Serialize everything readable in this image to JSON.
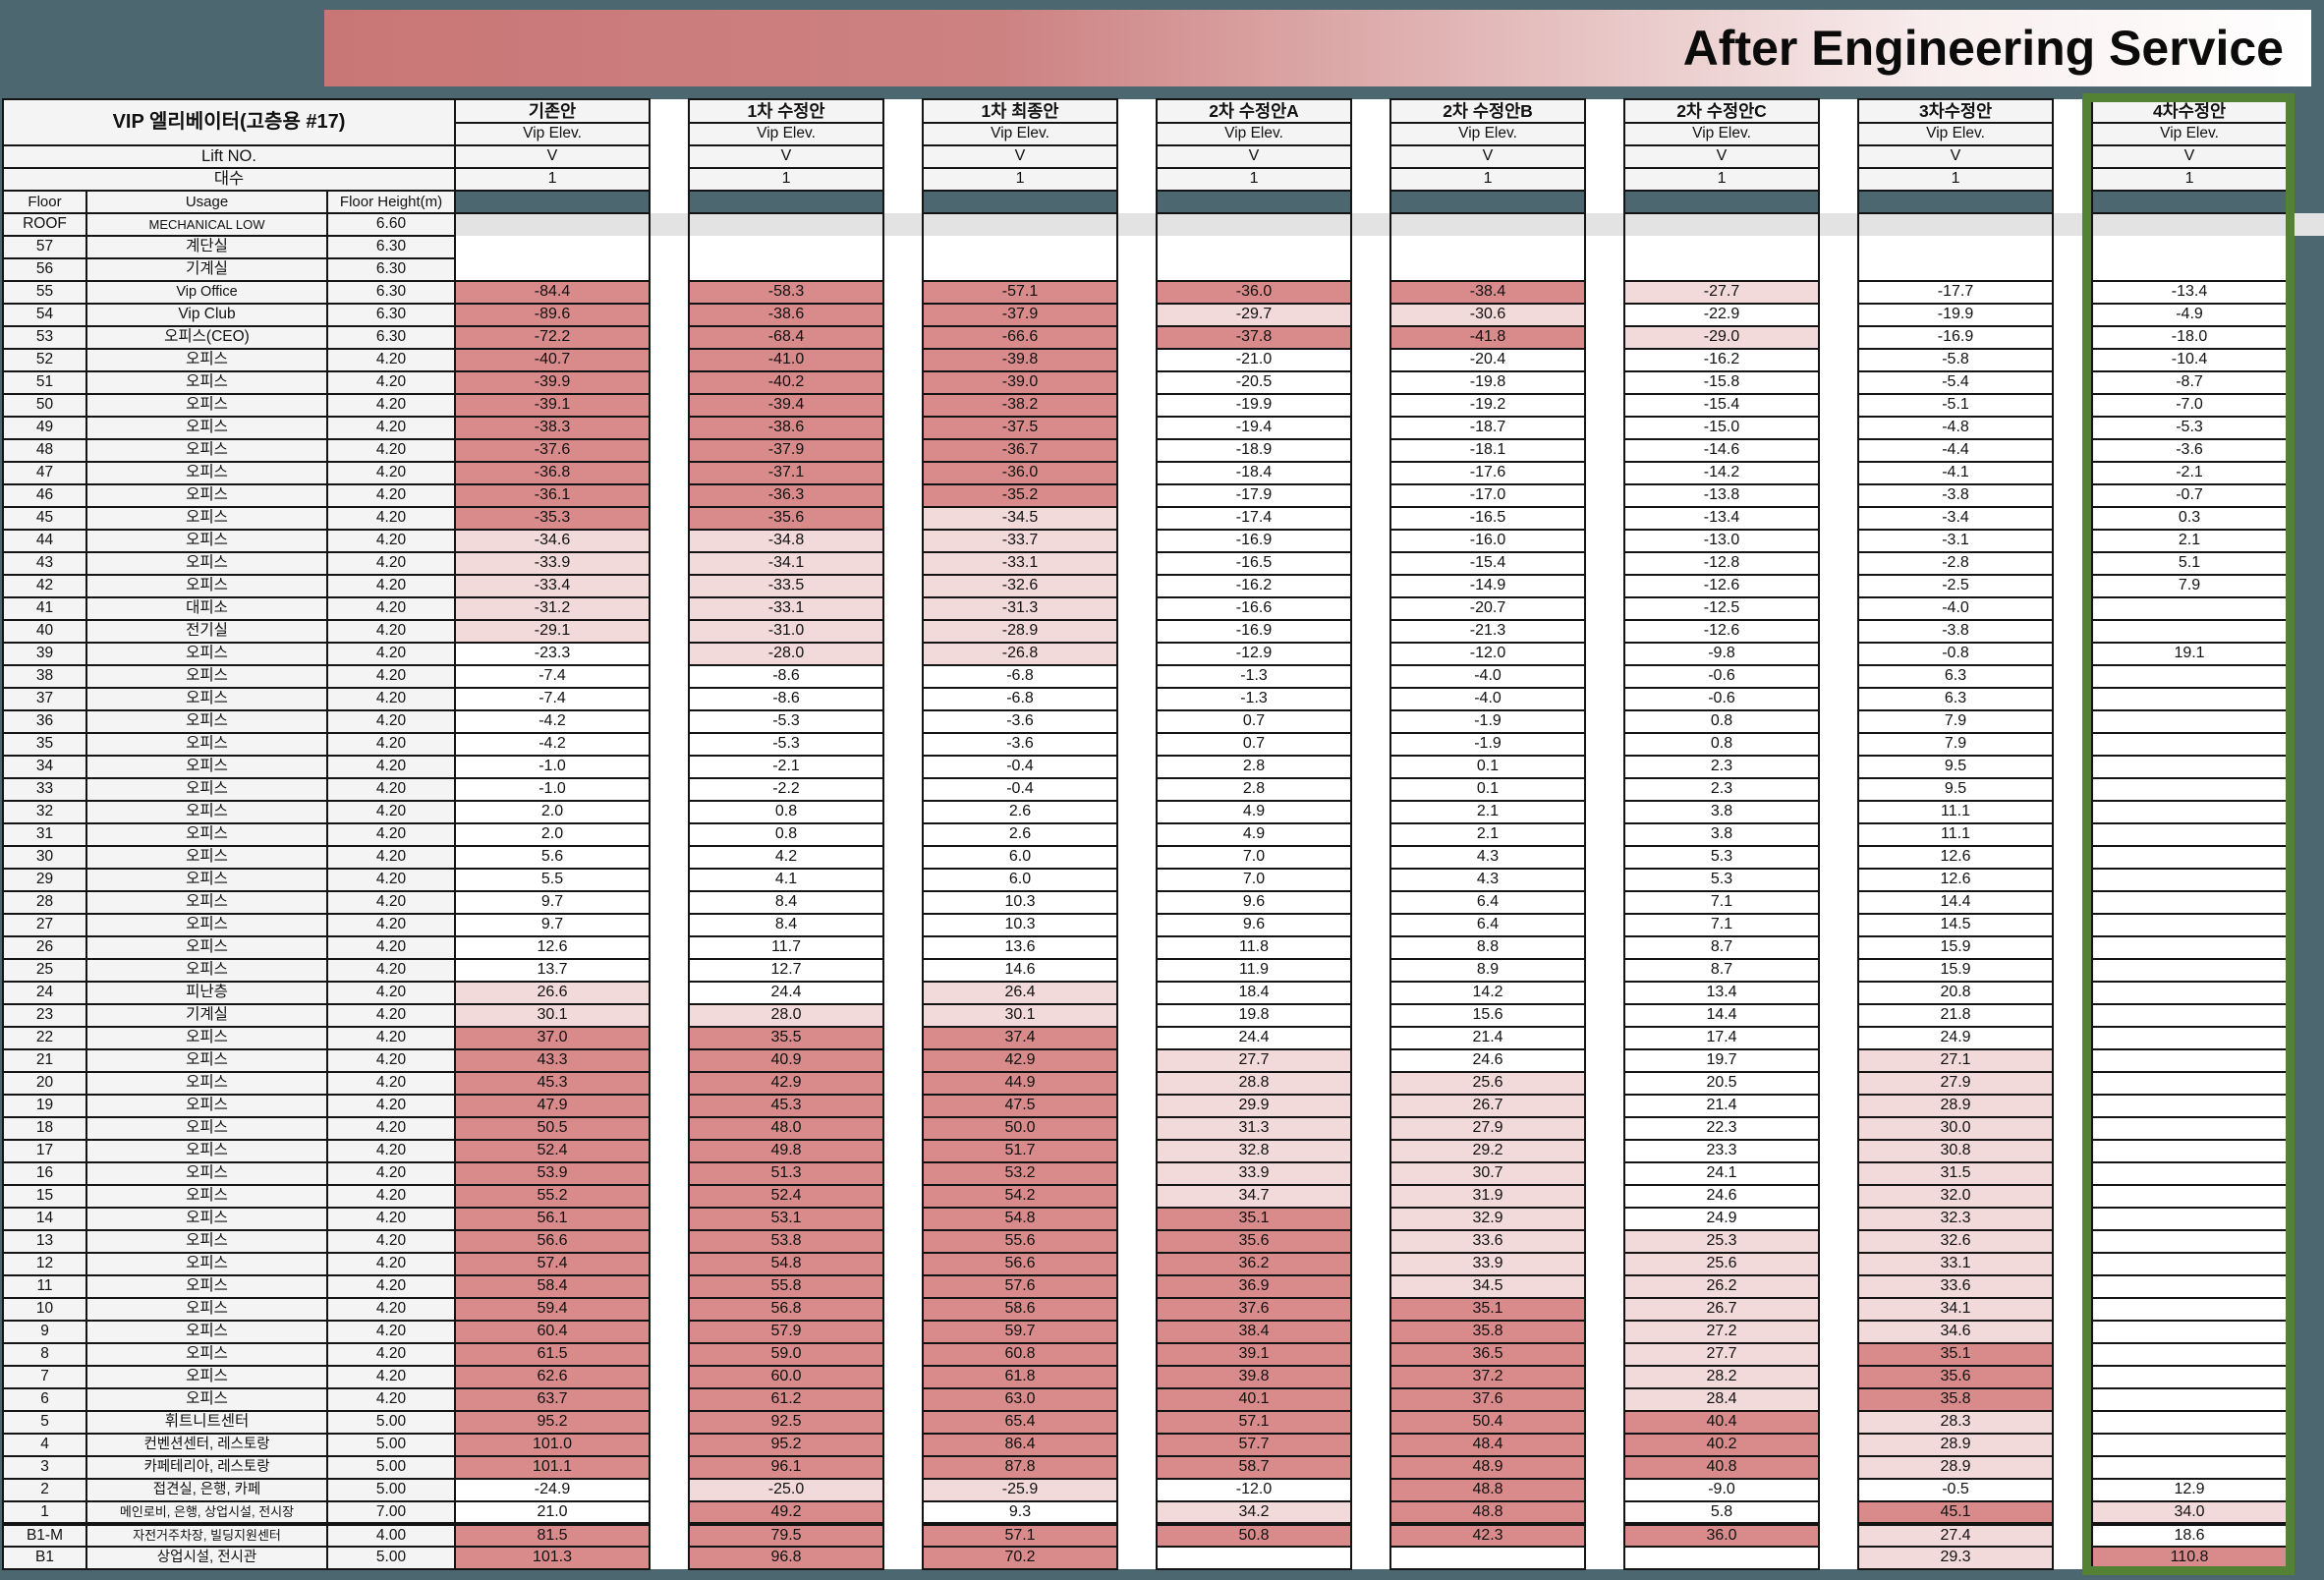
{
  "banner": {
    "title": "After Engineering Service",
    "gradient_from": "#c97676",
    "gradient_to": "#ffffff"
  },
  "table": {
    "corner_title": "VIP 엘리베이터(고층용 #17)",
    "lift_no_label": "Lift NO.",
    "unit_count_label": "대수",
    "floor_label": "Floor",
    "usage_label": "Usage",
    "floor_height_label": "Floor Height(m)",
    "format_colors": {
      "strong": "#d98b8b",
      "light": "#f2d9da",
      "highlight_border": "#548235"
    },
    "proposals": [
      {
        "name": "기존안",
        "sub": "Vip Elev.",
        "lift_no": "V",
        "units": "1",
        "highlight": false
      },
      {
        "name": "1차 수정안",
        "sub": "Vip Elev.",
        "lift_no": "V",
        "units": "1",
        "highlight": false
      },
      {
        "name": "1차 최종안",
        "sub": "Vip Elev.",
        "lift_no": "V",
        "units": "1",
        "highlight": false
      },
      {
        "name": "2차 수정안A",
        "sub": "Vip Elev.",
        "lift_no": "V",
        "units": "1",
        "highlight": false
      },
      {
        "name": "2차 수정안B",
        "sub": "Vip Elev.",
        "lift_no": "V",
        "units": "1",
        "highlight": false
      },
      {
        "name": "2차 수정안C",
        "sub": "Vip Elev.",
        "lift_no": "V",
        "units": "1",
        "highlight": false
      },
      {
        "name": "3차수정안",
        "sub": "Vip Elev.",
        "lift_no": "V",
        "units": "1",
        "highlight": false
      },
      {
        "name": "4차수정안",
        "sub": "Vip Elev.",
        "lift_no": "V",
        "units": "1",
        "highlight": true
      }
    ],
    "rows": [
      {
        "floor": "ROOF",
        "usage": "MECHANICAL LOW",
        "height": "6.60",
        "band": "gray",
        "nob": true,
        "values": [
          null,
          null,
          null,
          null,
          null,
          null,
          null,
          null
        ]
      },
      {
        "floor": "57",
        "usage": "계단실",
        "height": "6.30",
        "nob": true,
        "values": [
          null,
          null,
          null,
          null,
          null,
          null,
          null,
          null
        ]
      },
      {
        "floor": "56",
        "usage": "기계실",
        "height": "6.30",
        "values": [
          null,
          null,
          null,
          null,
          null,
          null,
          null,
          null
        ]
      },
      {
        "floor": "55",
        "usage": "Vip Office",
        "height": "6.30",
        "values": [
          "-84.4",
          "-58.3",
          "-57.1",
          "-36.0",
          "-38.4",
          "-27.7",
          "-17.7",
          "-13.4"
        ]
      },
      {
        "floor": "54",
        "usage": "Vip Club",
        "height": "6.30",
        "values": [
          "-89.6",
          "-38.6",
          "-37.9",
          "-29.7",
          "-30.6",
          "-22.9",
          "-19.9",
          "-4.9"
        ]
      },
      {
        "floor": "53",
        "usage": "오피스(CEO)",
        "height": "6.30",
        "values": [
          "-72.2",
          "-68.4",
          "-66.6",
          "-37.8",
          "-41.8",
          "-29.0",
          "-16.9",
          "-18.0"
        ]
      },
      {
        "floor": "52",
        "usage": "오피스",
        "height": "4.20",
        "values": [
          "-40.7",
          "-41.0",
          "-39.8",
          "-21.0",
          "-20.4",
          "-16.2",
          "-5.8",
          "-10.4"
        ]
      },
      {
        "floor": "51",
        "usage": "오피스",
        "height": "4.20",
        "values": [
          "-39.9",
          "-40.2",
          "-39.0",
          "-20.5",
          "-19.8",
          "-15.8",
          "-5.4",
          "-8.7"
        ]
      },
      {
        "floor": "50",
        "usage": "오피스",
        "height": "4.20",
        "values": [
          "-39.1",
          "-39.4",
          "-38.2",
          "-19.9",
          "-19.2",
          "-15.4",
          "-5.1",
          "-7.0"
        ]
      },
      {
        "floor": "49",
        "usage": "오피스",
        "height": "4.20",
        "values": [
          "-38.3",
          "-38.6",
          "-37.5",
          "-19.4",
          "-18.7",
          "-15.0",
          "-4.8",
          "-5.3"
        ]
      },
      {
        "floor": "48",
        "usage": "오피스",
        "height": "4.20",
        "values": [
          "-37.6",
          "-37.9",
          "-36.7",
          "-18.9",
          "-18.1",
          "-14.6",
          "-4.4",
          "-3.6"
        ]
      },
      {
        "floor": "47",
        "usage": "오피스",
        "height": "4.20",
        "values": [
          "-36.8",
          "-37.1",
          "-36.0",
          "-18.4",
          "-17.6",
          "-14.2",
          "-4.1",
          "-2.1"
        ]
      },
      {
        "floor": "46",
        "usage": "오피스",
        "height": "4.20",
        "values": [
          "-36.1",
          "-36.3",
          "-35.2",
          "-17.9",
          "-17.0",
          "-13.8",
          "-3.8",
          "-0.7"
        ]
      },
      {
        "floor": "45",
        "usage": "오피스",
        "height": "4.20",
        "values": [
          "-35.3",
          "-35.6",
          "-34.5",
          "-17.4",
          "-16.5",
          "-13.4",
          "-3.4",
          "0.3"
        ]
      },
      {
        "floor": "44",
        "usage": "오피스",
        "height": "4.20",
        "values": [
          "-34.6",
          "-34.8",
          "-33.7",
          "-16.9",
          "-16.0",
          "-13.0",
          "-3.1",
          "2.1"
        ]
      },
      {
        "floor": "43",
        "usage": "오피스",
        "height": "4.20",
        "values": [
          "-33.9",
          "-34.1",
          "-33.1",
          "-16.5",
          "-15.4",
          "-12.8",
          "-2.8",
          "5.1"
        ]
      },
      {
        "floor": "42",
        "usage": "오피스",
        "height": "4.20",
        "values": [
          "-33.4",
          "-33.5",
          "-32.6",
          "-16.2",
          "-14.9",
          "-12.6",
          "-2.5",
          "7.9"
        ]
      },
      {
        "floor": "41",
        "usage": "대피소",
        "height": "4.20",
        "values": [
          "-31.2",
          "-33.1",
          "-31.3",
          "-16.6",
          "-20.7",
          "-12.5",
          "-4.0",
          null
        ]
      },
      {
        "floor": "40",
        "usage": "전기실",
        "height": "4.20",
        "values": [
          "-29.1",
          "-31.0",
          "-28.9",
          "-16.9",
          "-21.3",
          "-12.6",
          "-3.8",
          null
        ]
      },
      {
        "floor": "39",
        "usage": "오피스",
        "height": "4.20",
        "values": [
          "-23.3",
          "-28.0",
          "-26.8",
          "-12.9",
          "-12.0",
          "-9.8",
          "-0.8",
          "19.1"
        ]
      },
      {
        "floor": "38",
        "usage": "오피스",
        "height": "4.20",
        "values": [
          "-7.4",
          "-8.6",
          "-6.8",
          "-1.3",
          "-4.0",
          "-0.6",
          "6.3",
          null
        ]
      },
      {
        "floor": "37",
        "usage": "오피스",
        "height": "4.20",
        "values": [
          "-7.4",
          "-8.6",
          "-6.8",
          "-1.3",
          "-4.0",
          "-0.6",
          "6.3",
          null
        ]
      },
      {
        "floor": "36",
        "usage": "오피스",
        "height": "4.20",
        "values": [
          "-4.2",
          "-5.3",
          "-3.6",
          "0.7",
          "-1.9",
          "0.8",
          "7.9",
          null
        ]
      },
      {
        "floor": "35",
        "usage": "오피스",
        "height": "4.20",
        "values": [
          "-4.2",
          "-5.3",
          "-3.6",
          "0.7",
          "-1.9",
          "0.8",
          "7.9",
          null
        ]
      },
      {
        "floor": "34",
        "usage": "오피스",
        "height": "4.20",
        "values": [
          "-1.0",
          "-2.1",
          "-0.4",
          "2.8",
          "0.1",
          "2.3",
          "9.5",
          null
        ]
      },
      {
        "floor": "33",
        "usage": "오피스",
        "height": "4.20",
        "values": [
          "-1.0",
          "-2.2",
          "-0.4",
          "2.8",
          "0.1",
          "2.3",
          "9.5",
          null
        ]
      },
      {
        "floor": "32",
        "usage": "오피스",
        "height": "4.20",
        "values": [
          "2.0",
          "0.8",
          "2.6",
          "4.9",
          "2.1",
          "3.8",
          "11.1",
          null
        ]
      },
      {
        "floor": "31",
        "usage": "오피스",
        "height": "4.20",
        "values": [
          "2.0",
          "0.8",
          "2.6",
          "4.9",
          "2.1",
          "3.8",
          "11.1",
          null
        ]
      },
      {
        "floor": "30",
        "usage": "오피스",
        "height": "4.20",
        "values": [
          "5.6",
          "4.2",
          "6.0",
          "7.0",
          "4.3",
          "5.3",
          "12.6",
          null
        ]
      },
      {
        "floor": "29",
        "usage": "오피스",
        "height": "4.20",
        "values": [
          "5.5",
          "4.1",
          "6.0",
          "7.0",
          "4.3",
          "5.3",
          "12.6",
          null
        ]
      },
      {
        "floor": "28",
        "usage": "오피스",
        "height": "4.20",
        "values": [
          "9.7",
          "8.4",
          "10.3",
          "9.6",
          "6.4",
          "7.1",
          "14.4",
          null
        ]
      },
      {
        "floor": "27",
        "usage": "오피스",
        "height": "4.20",
        "values": [
          "9.7",
          "8.4",
          "10.3",
          "9.6",
          "6.4",
          "7.1",
          "14.5",
          null
        ]
      },
      {
        "floor": "26",
        "usage": "오피스",
        "height": "4.20",
        "values": [
          "12.6",
          "11.7",
          "13.6",
          "11.8",
          "8.8",
          "8.7",
          "15.9",
          null
        ]
      },
      {
        "floor": "25",
        "usage": "오피스",
        "height": "4.20",
        "values": [
          "13.7",
          "12.7",
          "14.6",
          "11.9",
          "8.9",
          "8.7",
          "15.9",
          null
        ]
      },
      {
        "floor": "24",
        "usage": "피난층",
        "height": "4.20",
        "values": [
          "26.6",
          "24.4",
          "26.4",
          "18.4",
          "14.2",
          "13.4",
          "20.8",
          null
        ]
      },
      {
        "floor": "23",
        "usage": "기계실",
        "height": "4.20",
        "values": [
          "30.1",
          "28.0",
          "30.1",
          "19.8",
          "15.6",
          "14.4",
          "21.8",
          null
        ]
      },
      {
        "floor": "22",
        "usage": "오피스",
        "height": "4.20",
        "values": [
          "37.0",
          "35.5",
          "37.4",
          "24.4",
          "21.4",
          "17.4",
          "24.9",
          null
        ]
      },
      {
        "floor": "21",
        "usage": "오피스",
        "height": "4.20",
        "values": [
          "43.3",
          "40.9",
          "42.9",
          "27.7",
          "24.6",
          "19.7",
          "27.1",
          null
        ]
      },
      {
        "floor": "20",
        "usage": "오피스",
        "height": "4.20",
        "values": [
          "45.3",
          "42.9",
          "44.9",
          "28.8",
          "25.6",
          "20.5",
          "27.9",
          null
        ]
      },
      {
        "floor": "19",
        "usage": "오피스",
        "height": "4.20",
        "values": [
          "47.9",
          "45.3",
          "47.5",
          "29.9",
          "26.7",
          "21.4",
          "28.9",
          null
        ]
      },
      {
        "floor": "18",
        "usage": "오피스",
        "height": "4.20",
        "values": [
          "50.5",
          "48.0",
          "50.0",
          "31.3",
          "27.9",
          "22.3",
          "30.0",
          null
        ]
      },
      {
        "floor": "17",
        "usage": "오피스",
        "height": "4.20",
        "values": [
          "52.4",
          "49.8",
          "51.7",
          "32.8",
          "29.2",
          "23.3",
          "30.8",
          null
        ]
      },
      {
        "floor": "16",
        "usage": "오피스",
        "height": "4.20",
        "values": [
          "53.9",
          "51.3",
          "53.2",
          "33.9",
          "30.7",
          "24.1",
          "31.5",
          null
        ]
      },
      {
        "floor": "15",
        "usage": "오피스",
        "height": "4.20",
        "values": [
          "55.2",
          "52.4",
          "54.2",
          "34.7",
          "31.9",
          "24.6",
          "32.0",
          null
        ]
      },
      {
        "floor": "14",
        "usage": "오피스",
        "height": "4.20",
        "values": [
          "56.1",
          "53.1",
          "54.8",
          "35.1",
          "32.9",
          "24.9",
          "32.3",
          null
        ]
      },
      {
        "floor": "13",
        "usage": "오피스",
        "height": "4.20",
        "values": [
          "56.6",
          "53.8",
          "55.6",
          "35.6",
          "33.6",
          "25.3",
          "32.6",
          null
        ]
      },
      {
        "floor": "12",
        "usage": "오피스",
        "height": "4.20",
        "values": [
          "57.4",
          "54.8",
          "56.6",
          "36.2",
          "33.9",
          "25.6",
          "33.1",
          null
        ]
      },
      {
        "floor": "11",
        "usage": "오피스",
        "height": "4.20",
        "values": [
          "58.4",
          "55.8",
          "57.6",
          "36.9",
          "34.5",
          "26.2",
          "33.6",
          null
        ]
      },
      {
        "floor": "10",
        "usage": "오피스",
        "height": "4.20",
        "values": [
          "59.4",
          "56.8",
          "58.6",
          "37.6",
          "35.1",
          "26.7",
          "34.1",
          null
        ]
      },
      {
        "floor": "9",
        "usage": "오피스",
        "height": "4.20",
        "values": [
          "60.4",
          "57.9",
          "59.7",
          "38.4",
          "35.8",
          "27.2",
          "34.6",
          null
        ]
      },
      {
        "floor": "8",
        "usage": "오피스",
        "height": "4.20",
        "values": [
          "61.5",
          "59.0",
          "60.8",
          "39.1",
          "36.5",
          "27.7",
          "35.1",
          null
        ]
      },
      {
        "floor": "7",
        "usage": "오피스",
        "height": "4.20",
        "values": [
          "62.6",
          "60.0",
          "61.8",
          "39.8",
          "37.2",
          "28.2",
          "35.6",
          null
        ]
      },
      {
        "floor": "6",
        "usage": "오피스",
        "height": "4.20",
        "values": [
          "63.7",
          "61.2",
          "63.0",
          "40.1",
          "37.6",
          "28.4",
          "35.8",
          null
        ]
      },
      {
        "floor": "5",
        "usage": "휘트니트센터",
        "height": "5.00",
        "values": [
          "95.2",
          "92.5",
          "65.4",
          "57.1",
          "50.4",
          "40.4",
          "28.3",
          null
        ]
      },
      {
        "floor": "4",
        "usage": "컨벤션센터, 레스토랑",
        "height": "5.00",
        "values": [
          "101.0",
          "95.2",
          "86.4",
          "57.7",
          "48.4",
          "40.2",
          "28.9",
          null
        ]
      },
      {
        "floor": "3",
        "usage": "카페테리아, 레스토랑",
        "height": "5.00",
        "values": [
          "101.1",
          "96.1",
          "87.8",
          "58.7",
          "48.9",
          "40.8",
          "28.9",
          null
        ]
      },
      {
        "floor": "2",
        "usage": "접견실, 은행, 카페",
        "height": "5.00",
        "values": [
          "-24.9",
          "-25.0",
          "-25.9",
          "-12.0",
          "48.8",
          "-9.0",
          "-0.5",
          "12.9"
        ]
      },
      {
        "floor": "1",
        "usage": "메인로비, 은행, 상업시설, 전시장",
        "height": "7.00",
        "values": [
          "21.0",
          "49.2",
          "9.3",
          "34.2",
          "48.8",
          "5.8",
          "45.1",
          "34.0"
        ]
      },
      {
        "floor": "B1-M",
        "usage": "자전거주차장, 빌딩지원센터",
        "height": "4.00",
        "thick_top": true,
        "values": [
          "81.5",
          "79.5",
          "57.1",
          "50.8",
          "42.3",
          "36.0",
          "27.4",
          "18.6"
        ]
      },
      {
        "floor": "B1",
        "usage": "상업시설, 전시관",
        "height": "5.00",
        "values": [
          "101.3",
          "96.8",
          "70.2",
          null,
          null,
          null,
          "29.3",
          "110.8"
        ]
      }
    ]
  }
}
